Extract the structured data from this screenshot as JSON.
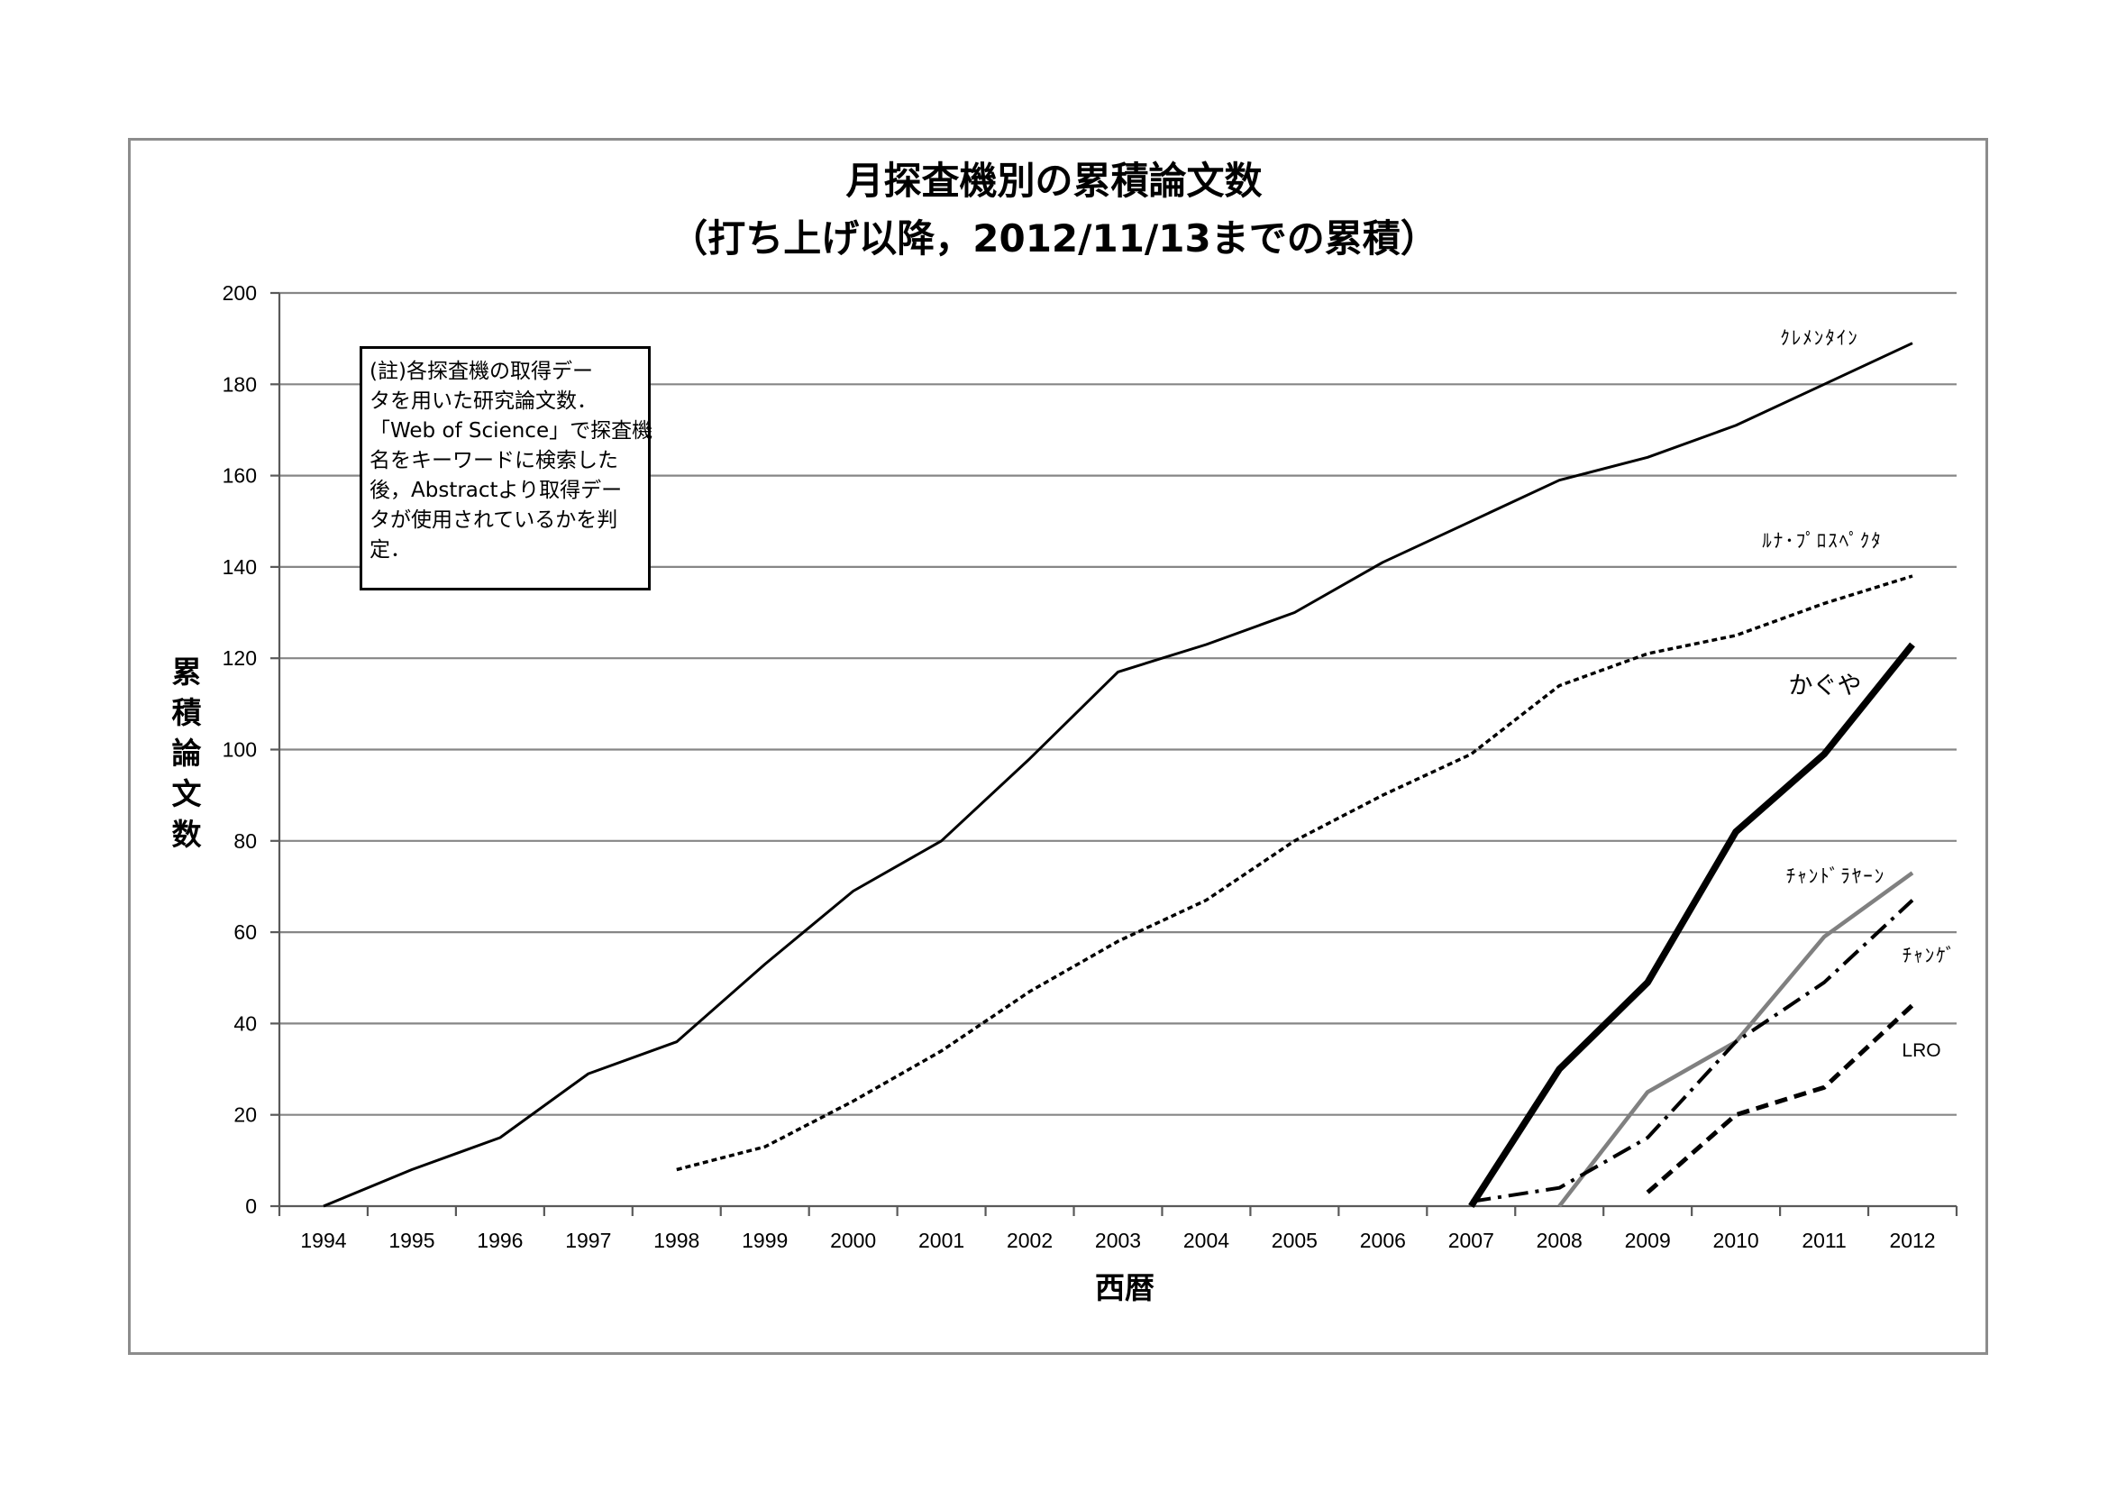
{
  "chart_data": {
    "type": "line",
    "title": "月探査機別の累積論文数",
    "subtitle": "（打ち上げ以降，2012/11/13までの累積）",
    "xlabel": "西暦",
    "ylabel": "累積論文数",
    "categories": [
      "1994",
      "1995",
      "1996",
      "1997",
      "1998",
      "1999",
      "2000",
      "2001",
      "2002",
      "2003",
      "2004",
      "2005",
      "2006",
      "2007",
      "2008",
      "2009",
      "2010",
      "2011",
      "2012"
    ],
    "ylim": [
      0,
      200
    ],
    "yticks": [
      0,
      20,
      40,
      60,
      80,
      100,
      120,
      140,
      160,
      180,
      200
    ],
    "grid": true,
    "legend": "none",
    "grid_color": "#868686",
    "axis_color": "#595959",
    "annotation": [
      "(註)各探査機の取得デー",
      "タを用いた研究論文数．",
      "「Web of Science」で探査機",
      "名をキーワードに検索した",
      "後，Abstractより取得デー",
      "タが使用されているかを判",
      "定．"
    ],
    "series": [
      {
        "name": "ｸﾚﾒﾝﾀｲﾝ",
        "color": "#000000",
        "line_style": "solid",
        "values": [
          0,
          8,
          15,
          29,
          36,
          53,
          69,
          80,
          98,
          117,
          123,
          130,
          141,
          150,
          159,
          164,
          171,
          180,
          189
        ]
      },
      {
        "name": "ﾙﾅ･ﾌﾟﾛｽﾍﾟｸﾀ",
        "color": "#000000",
        "line_style": "dotted",
        "values": [
          null,
          null,
          null,
          null,
          8,
          13,
          23,
          34,
          47,
          58,
          67,
          80,
          90,
          99,
          114,
          121,
          125,
          132,
          138
        ]
      },
      {
        "name": "かぐや",
        "color": "#000000",
        "line_style": "solid",
        "values": [
          null,
          null,
          null,
          null,
          null,
          null,
          null,
          null,
          null,
          null,
          null,
          null,
          null,
          0,
          30,
          49,
          82,
          99,
          123
        ]
      },
      {
        "name": "ﾁｬﾝﾄﾞﾗﾔｰﾝ",
        "color": "#808080",
        "line_style": "solid",
        "values": [
          null,
          null,
          null,
          null,
          null,
          null,
          null,
          null,
          null,
          null,
          null,
          null,
          null,
          null,
          0,
          25,
          36,
          59,
          73
        ]
      },
      {
        "name": "ﾁｬﾝｹﾞ",
        "color": "#000000",
        "line_style": "dash-dot",
        "values": [
          null,
          null,
          null,
          null,
          null,
          null,
          null,
          null,
          null,
          null,
          null,
          null,
          null,
          1,
          4,
          15,
          36,
          49,
          67
        ]
      },
      {
        "name": "LRO",
        "color": "#000000",
        "line_style": "dashed",
        "values": [
          null,
          null,
          null,
          null,
          null,
          null,
          null,
          null,
          null,
          null,
          null,
          null,
          null,
          null,
          null,
          3,
          20,
          26,
          44
        ]
      }
    ]
  }
}
